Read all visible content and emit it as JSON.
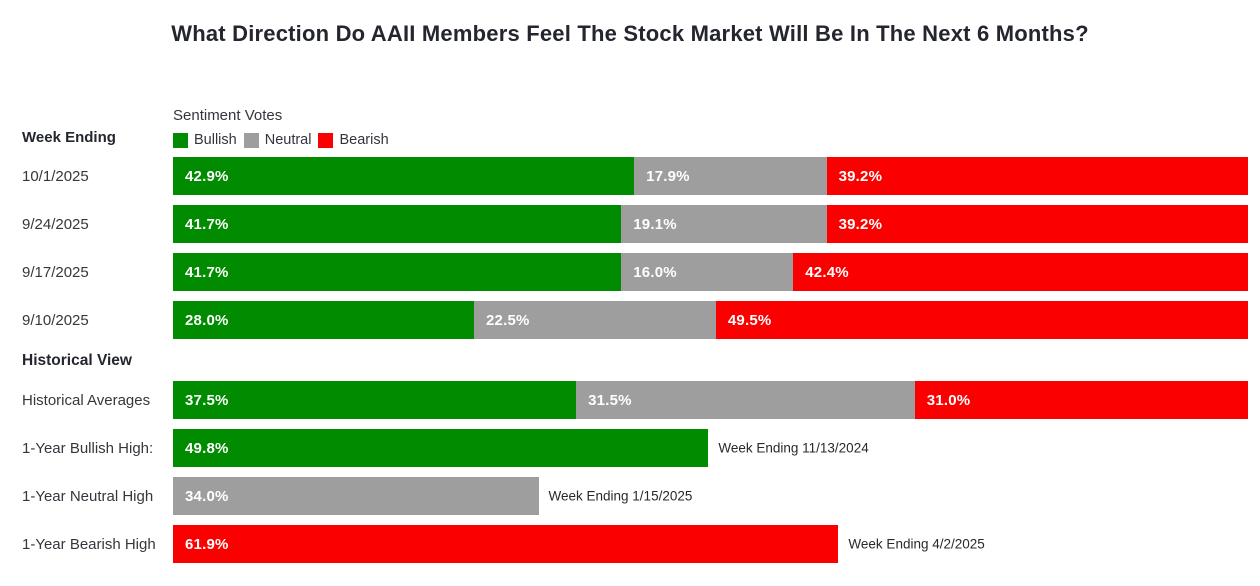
{
  "title": "What Direction Do AAII Members Feel The Stock Market Will Be In The Next 6 Months?",
  "left_header": "Week Ending",
  "legend_title": "Sentiment Votes",
  "historical_section_title": "Historical View",
  "chart_data": {
    "type": "bar",
    "orientation": "horizontal",
    "stacked": true,
    "xlim": [
      0,
      100
    ],
    "legend_position": "top-left",
    "series": [
      "Bullish",
      "Neutral",
      "Bearish"
    ],
    "series_colors": {
      "Bullish": "#018b01",
      "Neutral": "#9e9e9e",
      "Bearish": "#fb0000"
    },
    "weekly_rows": [
      {
        "label": "10/1/2025",
        "segments": [
          {
            "series": "Bullish",
            "value": 42.9
          },
          {
            "series": "Neutral",
            "value": 17.9
          },
          {
            "series": "Bearish",
            "value": 39.2
          }
        ]
      },
      {
        "label": "9/24/2025",
        "segments": [
          {
            "series": "Bullish",
            "value": 41.7
          },
          {
            "series": "Neutral",
            "value": 19.1
          },
          {
            "series": "Bearish",
            "value": 39.2
          }
        ]
      },
      {
        "label": "9/17/2025",
        "segments": [
          {
            "series": "Bullish",
            "value": 41.7
          },
          {
            "series": "Neutral",
            "value": 16.0
          },
          {
            "series": "Bearish",
            "value": 42.4
          }
        ]
      },
      {
        "label": "9/10/2025",
        "segments": [
          {
            "series": "Bullish",
            "value": 28.0
          },
          {
            "series": "Neutral",
            "value": 22.5
          },
          {
            "series": "Bearish",
            "value": 49.5
          }
        ]
      }
    ],
    "historical_rows": [
      {
        "label": "Historical Averages",
        "segments": [
          {
            "series": "Bullish",
            "value": 37.5
          },
          {
            "series": "Neutral",
            "value": 31.5
          },
          {
            "series": "Bearish",
            "value": 31.0
          }
        ]
      },
      {
        "label": "1-Year Bullish High:",
        "segments": [
          {
            "series": "Bullish",
            "value": 49.8
          }
        ],
        "annotation": "Week Ending 11/13/2024"
      },
      {
        "label": "1-Year Neutral High",
        "segments": [
          {
            "series": "Neutral",
            "value": 34.0
          }
        ],
        "annotation": "Week Ending 1/15/2025"
      },
      {
        "label": "1-Year Bearish High",
        "segments": [
          {
            "series": "Bearish",
            "value": 61.9
          }
        ],
        "annotation": "Week Ending 4/2/2025"
      }
    ]
  }
}
